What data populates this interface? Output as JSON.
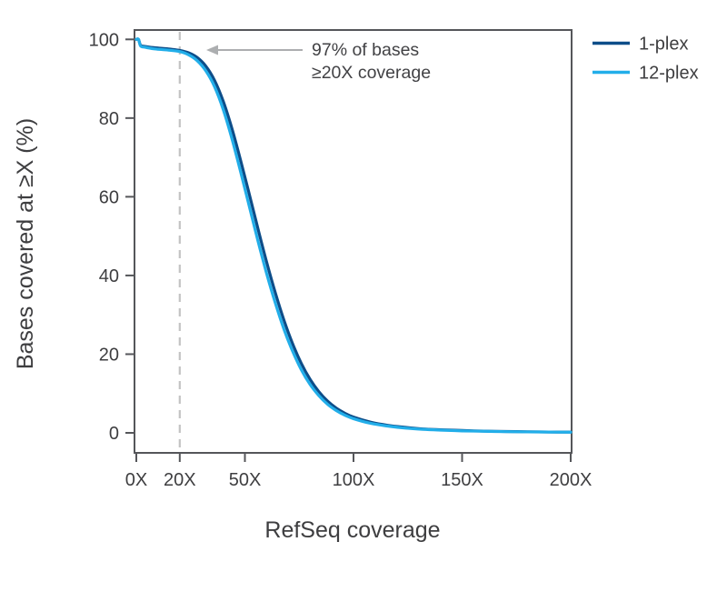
{
  "figure": {
    "background": "#ffffff"
  },
  "colors": {
    "axis": "#55565a",
    "tick_label": "#3e3e40",
    "annotation_text": "#424245",
    "arrow": "#acaeb0",
    "dashed_line": "#c3c3c3",
    "series_1plex": "#0d4d89",
    "series_12plex": "#22aee9"
  },
  "chart_data": {
    "type": "line",
    "title": "",
    "xlabel": "RefSeq coverage",
    "ylabel": "Bases covered at ≥X (%)",
    "xlim": [
      0,
      200
    ],
    "ylim": [
      0,
      100
    ],
    "grid": false,
    "legend_position": "top-right",
    "x": [
      0,
      1,
      2,
      4,
      8,
      12,
      16,
      20,
      24,
      28,
      32,
      36,
      40,
      44,
      48,
      52,
      56,
      60,
      64,
      68,
      72,
      76,
      80,
      84,
      88,
      92,
      96,
      100,
      108,
      116,
      124,
      132,
      140,
      150,
      160,
      170,
      180,
      190,
      200
    ],
    "series": [
      {
        "name": "1-plex",
        "color": "#0d4d89",
        "values": [
          100,
          100,
          98.5,
          98.2,
          97.9,
          97.7,
          97.5,
          97.2,
          96.6,
          95.4,
          93.2,
          89.6,
          84.3,
          77.4,
          69.3,
          60.7,
          51.9,
          43.4,
          35.6,
          28.6,
          22.6,
          17.6,
          13.6,
          10.5,
          8.1,
          6.3,
          5.0,
          4.0,
          2.7,
          1.9,
          1.4,
          1.0,
          0.8,
          0.6,
          0.45,
          0.35,
          0.28,
          0.22,
          0.2
        ]
      },
      {
        "name": "12-plex",
        "color": "#22aee9",
        "values": [
          100,
          100,
          98.3,
          98.0,
          97.6,
          97.4,
          97.2,
          96.9,
          96.1,
          94.6,
          92.0,
          88.0,
          82.2,
          74.8,
          66.4,
          57.6,
          48.8,
          40.5,
          33.0,
          26.3,
          20.7,
          16.0,
          12.3,
          9.5,
          7.3,
          5.7,
          4.5,
          3.6,
          2.4,
          1.7,
          1.2,
          0.9,
          0.7,
          0.5,
          0.4,
          0.3,
          0.25,
          0.2,
          0.18
        ]
      }
    ],
    "xticks": {
      "values": [
        0,
        20,
        50,
        100,
        150,
        200
      ],
      "labels": [
        "0X",
        "20X",
        "50X",
        "100X",
        "150X",
        "200X"
      ]
    },
    "yticks": {
      "values": [
        0,
        20,
        40,
        60,
        80,
        100
      ],
      "labels": [
        "0",
        "20",
        "40",
        "60",
        "80",
        "100"
      ]
    },
    "annotation": {
      "line1": "97% of bases",
      "line2": "≥20X coverage",
      "threshold_x": 20,
      "arrow_value": 97.3
    },
    "legend": {
      "entries": [
        {
          "label": "1-plex",
          "color": "#0d4d89"
        },
        {
          "label": "12-plex",
          "color": "#22aee9"
        }
      ]
    }
  }
}
